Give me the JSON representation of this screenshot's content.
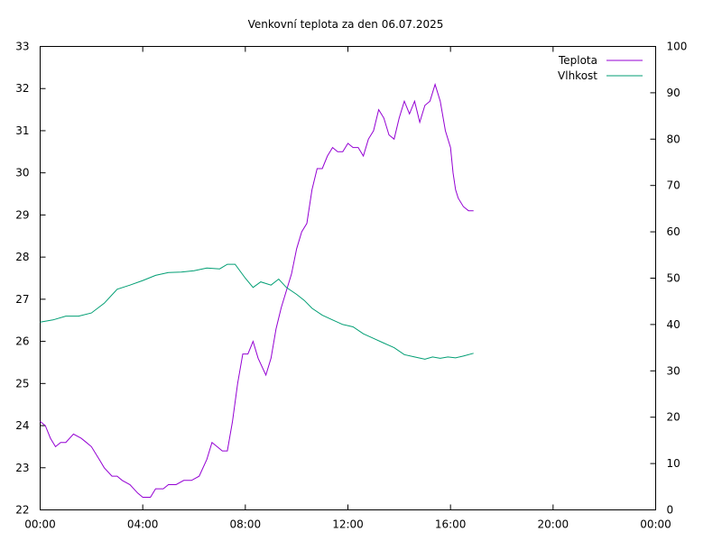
{
  "chart_data": {
    "type": "line",
    "title": "Venkovní teplota za den 06.07.2025",
    "xlabel": "",
    "ylabel": "",
    "y2label": "",
    "x_tick_labels": [
      "00:00",
      "04:00",
      "08:00",
      "12:00",
      "16:00",
      "20:00",
      "00:00"
    ],
    "x_range_hours": [
      0,
      24
    ],
    "y_ticks": [
      22,
      23,
      24,
      25,
      26,
      27,
      28,
      29,
      30,
      31,
      32,
      33
    ],
    "ylim": [
      22,
      33
    ],
    "y2_ticks": [
      0,
      10,
      20,
      30,
      40,
      50,
      60,
      70,
      80,
      90,
      100
    ],
    "y2lim": [
      0,
      100
    ],
    "grid": false,
    "legend_position": "top-right",
    "series": [
      {
        "name": "Teplota",
        "axis": "left",
        "color": "#9400d3",
        "x_hours": [
          0.0,
          0.2,
          0.4,
          0.6,
          0.8,
          1.0,
          1.3,
          1.6,
          1.8,
          2.0,
          2.3,
          2.5,
          2.8,
          3.0,
          3.2,
          3.5,
          3.8,
          4.0,
          4.3,
          4.5,
          4.8,
          5.0,
          5.3,
          5.6,
          5.9,
          6.2,
          6.5,
          6.7,
          6.9,
          7.1,
          7.3,
          7.5,
          7.7,
          7.9,
          8.1,
          8.3,
          8.5,
          8.8,
          9.0,
          9.2,
          9.4,
          9.6,
          9.8,
          10.0,
          10.2,
          10.4,
          10.6,
          10.8,
          11.0,
          11.2,
          11.4,
          11.6,
          11.8,
          12.0,
          12.2,
          12.4,
          12.6,
          12.8,
          13.0,
          13.2,
          13.4,
          13.6,
          13.8,
          14.0,
          14.2,
          14.4,
          14.6,
          14.8,
          15.0,
          15.2,
          15.4,
          15.6,
          15.8,
          16.0,
          16.1,
          16.2,
          16.3,
          16.5,
          16.7,
          16.9
        ],
        "values": [
          24.1,
          24.0,
          23.7,
          23.5,
          23.6,
          23.6,
          23.8,
          23.7,
          23.6,
          23.5,
          23.2,
          23.0,
          22.8,
          22.8,
          22.7,
          22.6,
          22.4,
          22.3,
          22.3,
          22.5,
          22.5,
          22.6,
          22.6,
          22.7,
          22.7,
          22.8,
          23.2,
          23.6,
          23.5,
          23.4,
          23.4,
          24.1,
          25.0,
          25.7,
          25.7,
          26.0,
          25.6,
          25.2,
          25.6,
          26.3,
          26.8,
          27.2,
          27.6,
          28.2,
          28.6,
          28.8,
          29.6,
          30.1,
          30.1,
          30.4,
          30.6,
          30.5,
          30.5,
          30.7,
          30.6,
          30.6,
          30.4,
          30.8,
          31.0,
          31.5,
          31.3,
          30.9,
          30.8,
          31.3,
          31.7,
          31.4,
          31.7,
          31.2,
          31.6,
          31.7,
          32.1,
          31.7,
          31.0,
          30.6,
          30.0,
          29.6,
          29.4,
          29.2,
          29.1,
          29.1
        ]
      },
      {
        "name": "Vlhkost",
        "axis": "right",
        "color": "#009e73",
        "x_hours": [
          0.0,
          0.5,
          1.0,
          1.5,
          2.0,
          2.5,
          3.0,
          3.5,
          4.0,
          4.5,
          5.0,
          5.5,
          6.0,
          6.5,
          7.0,
          7.3,
          7.6,
          8.0,
          8.3,
          8.6,
          9.0,
          9.3,
          9.6,
          10.0,
          10.3,
          10.6,
          11.0,
          11.4,
          11.8,
          12.2,
          12.6,
          13.0,
          13.4,
          13.8,
          14.2,
          14.6,
          15.0,
          15.3,
          15.6,
          15.9,
          16.2,
          16.5,
          16.9
        ],
        "values": [
          40.5,
          41.0,
          41.8,
          41.8,
          42.5,
          44.6,
          47.6,
          48.5,
          49.5,
          50.6,
          51.2,
          51.3,
          51.6,
          52.2,
          52.0,
          53.0,
          53.0,
          50.0,
          48.0,
          49.2,
          48.5,
          49.8,
          48.0,
          46.5,
          45.2,
          43.5,
          42.0,
          41.0,
          40.0,
          39.5,
          38.0,
          37.0,
          36.0,
          35.0,
          33.5,
          33.0,
          32.5,
          33.0,
          32.7,
          33.0,
          32.8,
          33.2,
          33.8
        ]
      }
    ]
  }
}
